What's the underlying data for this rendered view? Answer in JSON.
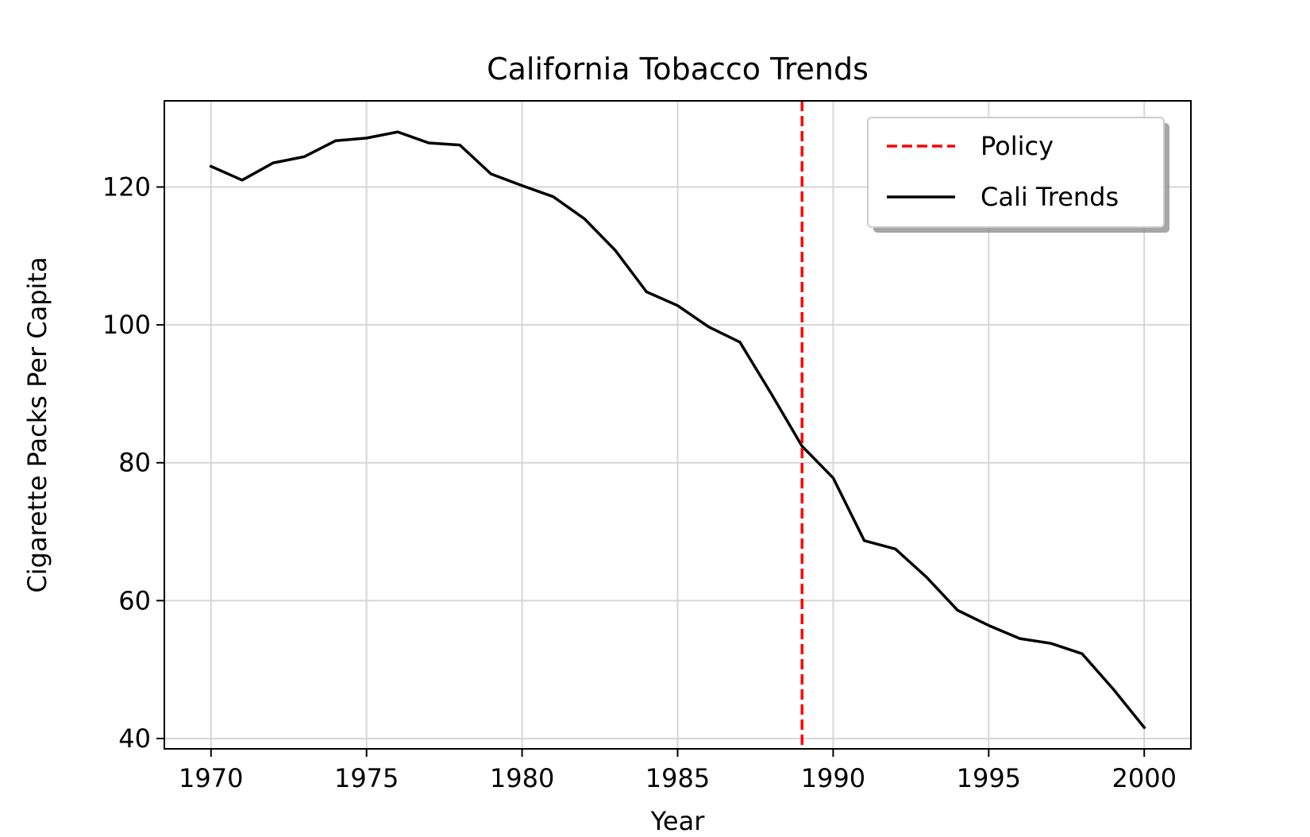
{
  "chart_data": {
    "type": "line",
    "title": "California Tobacco Trends",
    "xlabel": "Year",
    "ylabel": "Cigarette Packs Per Capita",
    "xlim": [
      1968.5,
      2001.5
    ],
    "ylim": [
      38.5,
      132.5
    ],
    "xticks": [
      1970,
      1975,
      1980,
      1985,
      1990,
      1995,
      2000
    ],
    "yticks": [
      40,
      60,
      80,
      100,
      120
    ],
    "grid": true,
    "legend_position": "upper right",
    "series": [
      {
        "name": "Cali Trends",
        "color": "#000000",
        "style": "solid",
        "x": [
          1970,
          1971,
          1972,
          1973,
          1974,
          1975,
          1976,
          1977,
          1978,
          1979,
          1980,
          1981,
          1982,
          1983,
          1984,
          1985,
          1986,
          1987,
          1988,
          1989,
          1990,
          1991,
          1992,
          1993,
          1994,
          1995,
          1996,
          1997,
          1998,
          1999,
          2000
        ],
        "y": [
          123.0,
          121.0,
          123.5,
          124.4,
          126.7,
          127.1,
          128.0,
          126.4,
          126.1,
          121.9,
          120.2,
          118.6,
          115.4,
          110.8,
          104.8,
          102.8,
          99.7,
          97.5,
          90.1,
          82.4,
          77.8,
          68.7,
          67.5,
          63.4,
          58.6,
          56.4,
          54.5,
          53.8,
          52.3,
          47.2,
          41.6
        ]
      }
    ],
    "annotations": [
      {
        "name": "Policy",
        "type": "vline",
        "x": 1989,
        "color": "#ff0000",
        "style": "dashed"
      }
    ]
  }
}
